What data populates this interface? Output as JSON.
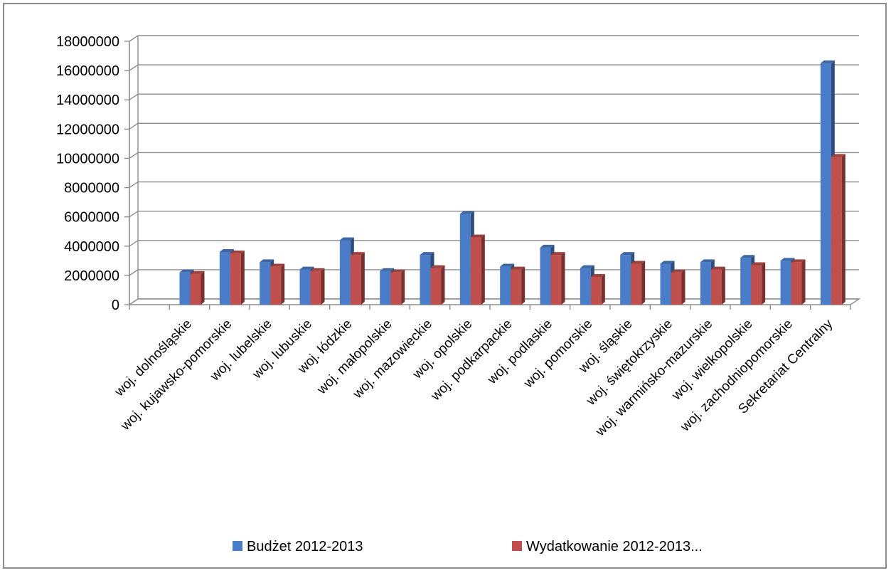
{
  "chart_data": {
    "type": "bar",
    "title": "",
    "xlabel": "",
    "ylabel": "",
    "ylim": [
      0,
      18000000
    ],
    "yticks": [
      0,
      2000000,
      4000000,
      6000000,
      8000000,
      10000000,
      12000000,
      14000000,
      16000000,
      18000000
    ],
    "grid": true,
    "legend_position": "bottom",
    "categories": [
      "",
      "woj. dolnośląskie",
      "woj. kujawsko-pomorskie",
      "woj. lubelskie",
      "woj. lubuskie",
      "woj. łódzkie",
      "woj. małopolskie",
      "woj. mazowieckie",
      "woj. opolskie",
      "woj. podkarpackie",
      "woj. podlaskie",
      "woj. pomorskie",
      "woj. śląskie",
      "woj. świętokrzyskie",
      "woj. warmińsko-mazurskie",
      "woj. wielkopolskie",
      "woj. zachodniopomorskie",
      "Sekretariat Centralny"
    ],
    "series": [
      {
        "name": "Budżet 2012-2013",
        "color": "#4a7cc7",
        "values": [
          null,
          2200000,
          3600000,
          2900000,
          2400000,
          4400000,
          2300000,
          3400000,
          6200000,
          2600000,
          3900000,
          2500000,
          3400000,
          2800000,
          2900000,
          3200000,
          3000000,
          16500000
        ]
      },
      {
        "name": "Wydatkowanie 2012-2013...",
        "color": "#c0504d",
        "values": [
          null,
          2100000,
          3500000,
          2600000,
          2300000,
          3400000,
          2200000,
          2500000,
          4600000,
          2400000,
          3400000,
          1900000,
          2800000,
          2200000,
          2400000,
          2700000,
          2900000,
          10100000
        ]
      }
    ]
  }
}
